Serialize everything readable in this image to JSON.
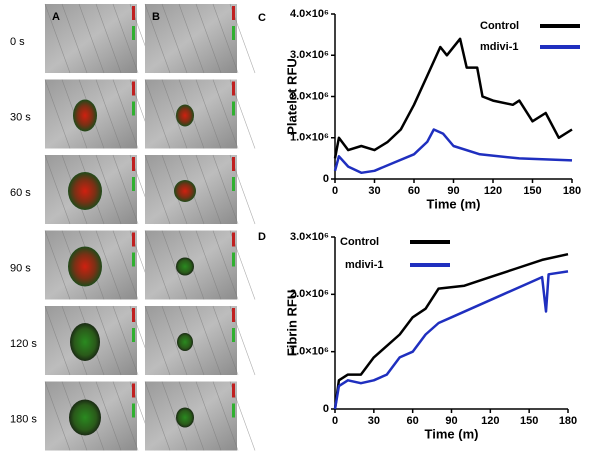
{
  "images": {
    "column_labels": [
      "A",
      "B"
    ],
    "row_labels": [
      "0 s",
      "30 s",
      "60 s",
      "90 s",
      "120 s",
      "180 s"
    ]
  },
  "chart_data": [
    {
      "type": "line",
      "label": "C",
      "ylabel": "Platelet RFU",
      "xlabel": "Time (m)",
      "xlim": [
        0,
        180
      ],
      "xticks": [
        0,
        30,
        60,
        90,
        120,
        150,
        180
      ],
      "ylim": [
        0,
        4000000
      ],
      "yticks": [
        0,
        {
          "value": 1000000,
          "label": "1.0×10⁶"
        },
        {
          "value": 2000000,
          "label": "2.0×10⁶"
        },
        {
          "value": 3000000,
          "label": "3.0×10⁶"
        },
        {
          "value": 4000000,
          "label": "4.0×10⁶"
        }
      ],
      "series": [
        {
          "name": "Control",
          "color": "#000000",
          "x": [
            0,
            3,
            10,
            20,
            30,
            40,
            50,
            60,
            70,
            80,
            85,
            95,
            100,
            108,
            112,
            120,
            135,
            140,
            150,
            160,
            170,
            180
          ],
          "values": [
            500000,
            1000000,
            700000,
            800000,
            700000,
            900000,
            1200000,
            1800000,
            2500000,
            3200000,
            3000000,
            3400000,
            2700000,
            2700000,
            2000000,
            1900000,
            1800000,
            1900000,
            1400000,
            1600000,
            1000000,
            1200000
          ]
        },
        {
          "name": "mdivi-1",
          "color": "#1f2fbf",
          "x": [
            0,
            3,
            10,
            20,
            30,
            45,
            60,
            70,
            75,
            82,
            90,
            110,
            140,
            180
          ],
          "values": [
            200000,
            550000,
            300000,
            150000,
            200000,
            400000,
            600000,
            900000,
            1200000,
            1100000,
            800000,
            600000,
            500000,
            450000
          ]
        }
      ]
    },
    {
      "type": "line",
      "label": "D",
      "ylabel": "Fibrin RFU",
      "xlabel": "Time (m)",
      "xlim": [
        0,
        180
      ],
      "xticks": [
        0,
        30,
        60,
        90,
        120,
        150,
        180
      ],
      "ylim": [
        0,
        3000000
      ],
      "yticks": [
        0,
        {
          "value": 1000000,
          "label": "1.0×10⁶"
        },
        {
          "value": 2000000,
          "label": "2.0×10⁶"
        },
        {
          "value": 3000000,
          "label": "3.0×10⁶"
        }
      ],
      "series": [
        {
          "name": "Control",
          "color": "#000000",
          "x": [
            0,
            3,
            10,
            20,
            30,
            40,
            50,
            60,
            70,
            80,
            100,
            120,
            140,
            160,
            180
          ],
          "values": [
            0,
            500000,
            600000,
            600000,
            900000,
            1100000,
            1300000,
            1600000,
            1750000,
            2100000,
            2150000,
            2300000,
            2450000,
            2600000,
            2700000
          ]
        },
        {
          "name": "mdivi-1",
          "color": "#1f2fbf",
          "x": [
            0,
            3,
            10,
            20,
            30,
            40,
            50,
            60,
            70,
            80,
            90,
            110,
            130,
            150,
            160,
            163,
            165,
            180
          ],
          "values": [
            0,
            400000,
            500000,
            450000,
            500000,
            600000,
            900000,
            1000000,
            1300000,
            1500000,
            1600000,
            1800000,
            2000000,
            2200000,
            2300000,
            1700000,
            2350000,
            2400000
          ]
        }
      ]
    }
  ]
}
